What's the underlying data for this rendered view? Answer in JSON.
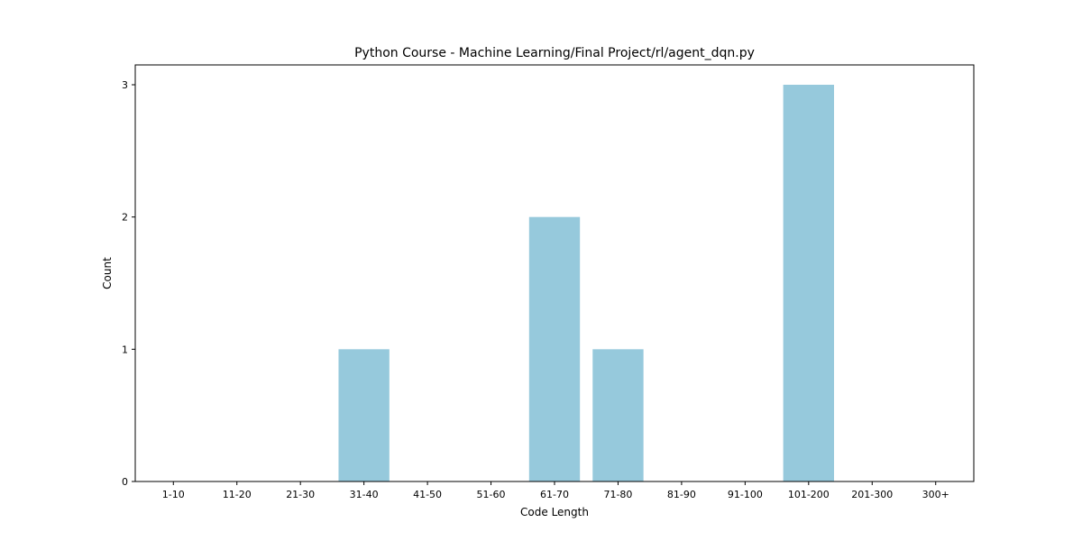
{
  "chart_data": {
    "type": "bar",
    "title": "Python Course - Machine Learning/Final Project/rl/agent_dqn.py",
    "xlabel": "Code Length",
    "ylabel": "Count",
    "categories": [
      "1-10",
      "11-20",
      "21-30",
      "31-40",
      "41-50",
      "51-60",
      "61-70",
      "71-80",
      "81-90",
      "91-100",
      "101-200",
      "201-300",
      "300+"
    ],
    "values": [
      0,
      0,
      0,
      1,
      0,
      0,
      2,
      1,
      0,
      0,
      3,
      0,
      0
    ],
    "ylim": [
      0,
      3.15
    ],
    "yticks": [
      0,
      1,
      2,
      3
    ],
    "grid": false,
    "bar_color": "#96c9dc"
  }
}
